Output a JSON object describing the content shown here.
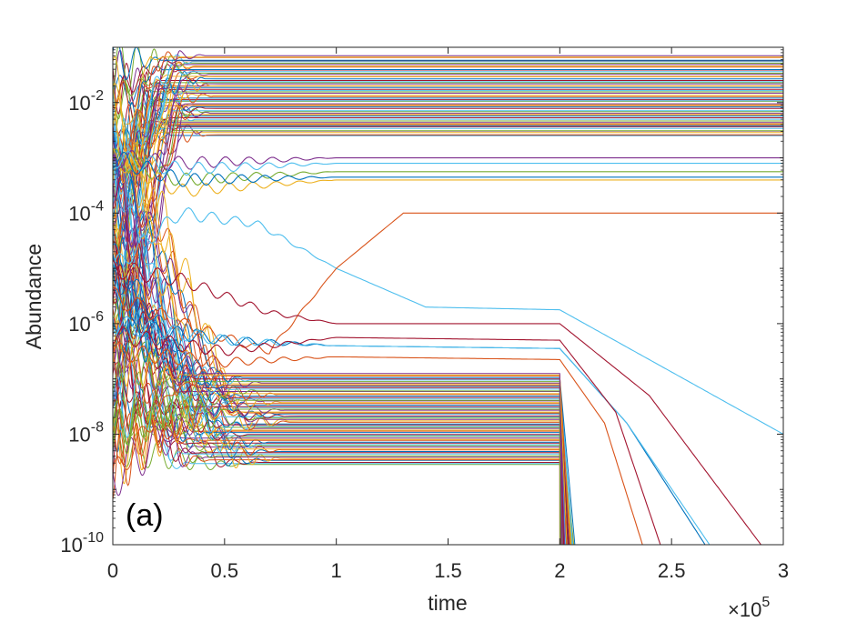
{
  "chart_data": {
    "type": "line",
    "title": "",
    "xlabel": "time",
    "ylabel": "Abundance",
    "x_multiplier_label": "×10",
    "x_multiplier_exponent": "5",
    "annotation": "(a)",
    "xlim": [
      0,
      3
    ],
    "ylim_log10": [
      -10,
      -1
    ],
    "yscale": "log",
    "grid": false,
    "legend": "none",
    "x_ticks": [
      "0",
      "0.5",
      "1",
      "1.5",
      "2",
      "2.5",
      "3"
    ],
    "y_ticks": [
      {
        "base": "10",
        "exp": "-10"
      },
      {
        "base": "10",
        "exp": "-8"
      },
      {
        "base": "10",
        "exp": "-6"
      },
      {
        "base": "10",
        "exp": "-4"
      },
      {
        "base": "10",
        "exp": "-2"
      }
    ],
    "colors": [
      "#0072BD",
      "#D95319",
      "#EDB120",
      "#7E2F8E",
      "#77AC30",
      "#4DBEEE",
      "#A2142F"
    ],
    "bundle_high": {
      "count": 60,
      "log10_range": [
        -2.6,
        -1.15
      ],
      "oscillation_end_x": 0.35
    },
    "bundle_low": {
      "count": 70,
      "log10_range": [
        -8.55,
        -6.9
      ],
      "collapse_x": [
        2.0,
        2.08
      ]
    },
    "series": [
      {
        "color": "#4DBEEE",
        "points": [
          [
            0.0,
            -5.0
          ],
          [
            0.3,
            -4.0
          ],
          [
            0.65,
            -4.2
          ],
          [
            1.0,
            -5.0
          ],
          [
            1.4,
            -5.7
          ],
          [
            2.0,
            -5.75
          ],
          [
            3.0,
            -8.0
          ]
        ]
      },
      {
        "color": "#D95319",
        "points": [
          [
            0.0,
            -5.5
          ],
          [
            0.3,
            -6.0
          ],
          [
            0.7,
            -6.5
          ],
          [
            1.0,
            -5.0
          ],
          [
            1.3,
            -4.0
          ],
          [
            2.0,
            -4.0
          ],
          [
            3.0,
            -4.0
          ]
        ]
      },
      {
        "color": "#A2142F",
        "points": [
          [
            0.0,
            -5.0
          ],
          [
            0.3,
            -5.2
          ],
          [
            0.7,
            -5.8
          ],
          [
            1.0,
            -6.0
          ],
          [
            1.4,
            -6.0
          ],
          [
            2.0,
            -6.0
          ],
          [
            2.4,
            -7.3
          ],
          [
            2.9,
            -10.0
          ]
        ]
      },
      {
        "color": "#0072BD",
        "points": [
          [
            0.0,
            -6.0
          ],
          [
            0.5,
            -6.3
          ],
          [
            1.0,
            -6.4
          ],
          [
            2.0,
            -6.45
          ],
          [
            2.3,
            -7.8
          ],
          [
            2.65,
            -10.0
          ]
        ]
      },
      {
        "color": "#4DBEEE",
        "points": [
          [
            0.0,
            -6.0
          ],
          [
            0.5,
            -6.3
          ],
          [
            1.0,
            -6.4
          ],
          [
            2.0,
            -6.45
          ],
          [
            2.3,
            -7.8
          ],
          [
            2.67,
            -10.0
          ]
        ]
      },
      {
        "color": "#A2142F",
        "points": [
          [
            0.0,
            -6.2
          ],
          [
            0.5,
            -6.5
          ],
          [
            1.0,
            -6.25
          ],
          [
            2.0,
            -6.3
          ],
          [
            2.25,
            -7.6
          ],
          [
            2.45,
            -10.0
          ]
        ]
      },
      {
        "color": "#D95319",
        "points": [
          [
            0.0,
            -6.5
          ],
          [
            0.5,
            -6.7
          ],
          [
            1.0,
            -6.6
          ],
          [
            2.0,
            -6.65
          ],
          [
            2.2,
            -7.8
          ],
          [
            2.37,
            -10.0
          ]
        ]
      },
      {
        "color": "#77AC30",
        "points": [
          [
            0.0,
            -3.0
          ],
          [
            0.3,
            -3.4
          ],
          [
            1.0,
            -3.25
          ],
          [
            2.0,
            -3.25
          ],
          [
            3.0,
            -3.25
          ]
        ]
      },
      {
        "color": "#EDB120",
        "points": [
          [
            0.0,
            -3.0
          ],
          [
            0.3,
            -3.6
          ],
          [
            1.0,
            -3.4
          ],
          [
            2.0,
            -3.4
          ],
          [
            3.0,
            -3.4
          ]
        ]
      },
      {
        "color": "#7E2F8E",
        "points": [
          [
            0.0,
            -3.0
          ],
          [
            0.3,
            -3.1
          ],
          [
            1.0,
            -3.0
          ],
          [
            2.0,
            -3.0
          ],
          [
            3.0,
            -3.0
          ]
        ]
      },
      {
        "color": "#4DBEEE",
        "points": [
          [
            0.0,
            -3.0
          ],
          [
            0.3,
            -3.2
          ],
          [
            1.0,
            -3.1
          ],
          [
            2.0,
            -3.1
          ],
          [
            3.0,
            -3.1
          ]
        ]
      },
      {
        "color": "#0072BD",
        "points": [
          [
            0.0,
            -3.0
          ],
          [
            0.3,
            -3.4
          ],
          [
            1.0,
            -3.35
          ],
          [
            2.0,
            -3.35
          ],
          [
            3.0,
            -3.35
          ]
        ]
      }
    ]
  }
}
